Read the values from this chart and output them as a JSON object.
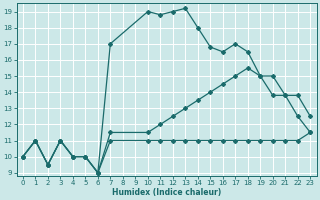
{
  "xlabel": "Humidex (Indice chaleur)",
  "bg_color": "#cce8e8",
  "line_color": "#1a6b6b",
  "grid_color": "#ffffff",
  "xlim": [
    -0.5,
    23.5
  ],
  "ylim": [
    8.8,
    19.5
  ],
  "xticks": [
    0,
    1,
    2,
    3,
    4,
    5,
    6,
    7,
    8,
    9,
    10,
    11,
    12,
    13,
    14,
    15,
    16,
    17,
    18,
    19,
    20,
    21,
    22,
    23
  ],
  "yticks": [
    9,
    10,
    11,
    12,
    13,
    14,
    15,
    16,
    17,
    18,
    19
  ],
  "series": [
    {
      "x": [
        0,
        1,
        2,
        3,
        4,
        5,
        6,
        7,
        10,
        11,
        12,
        13,
        14,
        15,
        16,
        17,
        18,
        19,
        20,
        21,
        22,
        23
      ],
      "y": [
        10,
        11,
        9.5,
        11,
        10,
        10,
        9,
        11,
        11,
        11,
        11,
        11,
        11,
        11,
        11,
        11,
        11,
        11,
        11,
        11,
        11,
        11.5
      ]
    },
    {
      "x": [
        0,
        1,
        2,
        3,
        4,
        5,
        6,
        7,
        10,
        11,
        12,
        13,
        14,
        15,
        16,
        17,
        18,
        19,
        20,
        21,
        22,
        23
      ],
      "y": [
        10,
        11,
        9.5,
        11,
        10,
        10,
        9,
        11.5,
        11.5,
        12,
        12.5,
        13,
        13.5,
        14,
        14.5,
        15,
        15.5,
        15,
        13.8,
        13.8,
        12.5,
        11.5
      ]
    },
    {
      "x": [
        0,
        1,
        2,
        3,
        4,
        5,
        6,
        7,
        10,
        11,
        12,
        13,
        14,
        15,
        16,
        17,
        18,
        19,
        20,
        21,
        22,
        23
      ],
      "y": [
        10,
        11,
        9.5,
        11,
        10,
        10,
        9,
        17,
        19,
        18.8,
        19,
        19.2,
        18,
        16.8,
        16.5,
        17,
        16.5,
        15,
        15,
        13.8,
        13.8,
        12.5
      ]
    }
  ]
}
